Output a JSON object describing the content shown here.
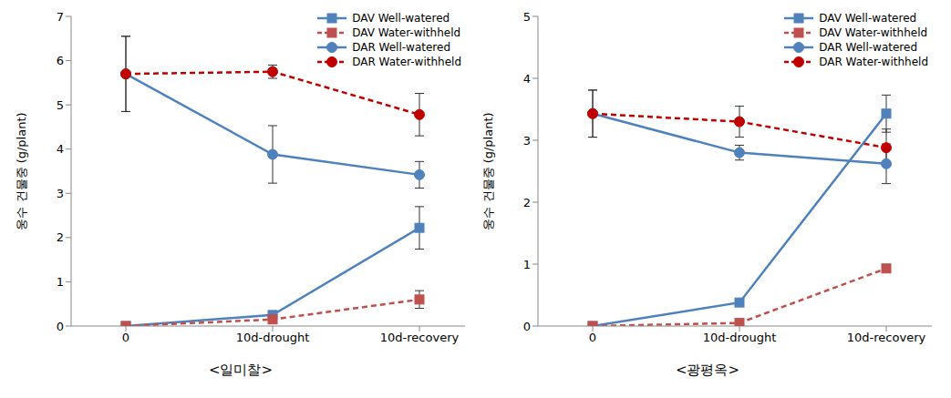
{
  "chart_data": [
    {
      "type": "line",
      "title": "<일미찰>",
      "y_label": "웅수 건물중 (g/plant)",
      "categories": [
        "0",
        "10d-drought",
        "10d-recovery"
      ],
      "ylim": [
        0,
        7
      ],
      "yticks": [
        0,
        1,
        2,
        3,
        4,
        5,
        6,
        7
      ],
      "grid": false,
      "legend": "upper right",
      "series": [
        {
          "name": "DAV Well-watered",
          "color": "#4f81bd",
          "marker": "square",
          "line_style": "solid",
          "values": [
            0,
            0.25,
            2.22
          ],
          "errors": [
            null,
            null,
            0.48
          ]
        },
        {
          "name": "DAV Water-withheld",
          "color": "#c0504d",
          "marker": "square",
          "line_style": "dashed",
          "values": [
            0,
            0.15,
            0.6
          ],
          "errors": [
            null,
            null,
            0.2
          ]
        },
        {
          "name": "DAR Well-watered",
          "color": "#4f81bd",
          "marker": "circle",
          "line_style": "solid",
          "values": [
            5.7,
            3.88,
            3.42
          ],
          "errors": [
            0.85,
            0.65,
            0.3
          ]
        },
        {
          "name": "DAR Water-withheld",
          "color": "#c00000",
          "marker": "circle",
          "line_style": "dashed",
          "values": [
            5.7,
            5.75,
            4.78
          ],
          "errors": [
            0.85,
            0.15,
            0.48
          ]
        }
      ]
    },
    {
      "type": "line",
      "title": "<광평옥>",
      "y_label": "웅수 건물중 (g/plant)",
      "categories": [
        "0",
        "10d-drought",
        "10d-recovery"
      ],
      "ylim": [
        0,
        5
      ],
      "yticks": [
        0,
        1,
        2,
        3,
        4,
        5
      ],
      "grid": false,
      "legend": "upper right",
      "series": [
        {
          "name": "DAV Well-watered",
          "color": "#4f81bd",
          "marker": "square",
          "line_style": "solid",
          "values": [
            0,
            0.38,
            3.43
          ],
          "errors": [
            null,
            0.05,
            0.3
          ]
        },
        {
          "name": "DAV Water-withheld",
          "color": "#c0504d",
          "marker": "square",
          "line_style": "dashed",
          "values": [
            0,
            0.05,
            0.93
          ],
          "errors": [
            null,
            null,
            null
          ]
        },
        {
          "name": "DAR Well-watered",
          "color": "#4f81bd",
          "marker": "circle",
          "line_style": "solid",
          "values": [
            3.43,
            2.8,
            2.62
          ],
          "errors": [
            0.38,
            0.12,
            0.32
          ]
        },
        {
          "name": "DAR Water-withheld",
          "color": "#c00000",
          "marker": "circle",
          "line_style": "dashed",
          "values": [
            3.43,
            3.3,
            2.88
          ],
          "errors": [
            0.38,
            0.25,
            0.3
          ]
        }
      ]
    }
  ]
}
